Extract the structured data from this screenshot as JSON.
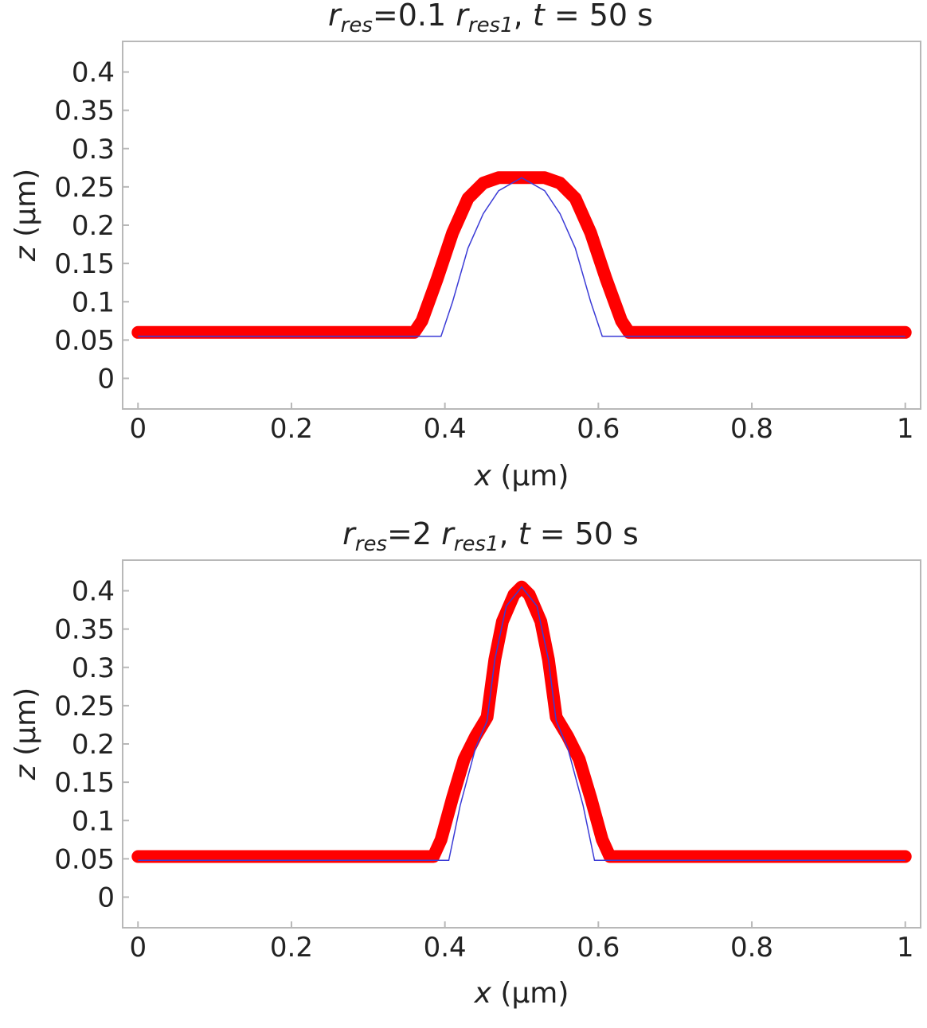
{
  "colors": {
    "band": "#ff0000",
    "centerline": "#3b3bd6",
    "frame": "#b8b8b8"
  },
  "chart_data": [
    {
      "type": "line",
      "title": {
        "r": "r",
        "res_sub": "res",
        "mid": "=0.1 ",
        "r2": "r",
        "res1_sub": "res1",
        "comma": ", ",
        "t": "t",
        "tail": " = 50 s"
      },
      "xlabel": {
        "var": "x",
        "unit": " (µm)"
      },
      "ylabel": {
        "var": "z",
        "unit": " (µm)"
      },
      "xlim": [
        -0.02,
        1.02
      ],
      "ylim": [
        -0.04,
        0.44
      ],
      "xticks": [
        0,
        0.2,
        0.4,
        0.6,
        0.8,
        1
      ],
      "xtick_labels": [
        "0",
        "0.2",
        "0.4",
        "0.6",
        "0.8",
        "1"
      ],
      "yticks": [
        0,
        0.05,
        0.1,
        0.15,
        0.2,
        0.25,
        0.3,
        0.35,
        0.4
      ],
      "ytick_labels": [
        "0",
        "0.05",
        "0.1",
        "0.15",
        "0.2",
        "0.25",
        "0.3",
        "0.35",
        "0.4"
      ],
      "grid": false,
      "series": [
        {
          "style": "thick-red-band",
          "x": [
            0,
            0.36,
            0.37,
            0.39,
            0.41,
            0.43,
            0.45,
            0.47,
            0.49,
            0.51,
            0.53,
            0.55,
            0.57,
            0.59,
            0.61,
            0.63,
            0.64,
            1
          ],
          "values": [
            0.06,
            0.06,
            0.075,
            0.13,
            0.19,
            0.235,
            0.255,
            0.262,
            0.262,
            0.262,
            0.262,
            0.255,
            0.235,
            0.19,
            0.13,
            0.075,
            0.06,
            0.06
          ]
        },
        {
          "style": "thin-blue-line",
          "x": [
            0,
            0.38,
            0.395,
            0.41,
            0.43,
            0.45,
            0.47,
            0.5,
            0.53,
            0.55,
            0.57,
            0.59,
            0.605,
            0.62,
            1
          ],
          "values": [
            0.055,
            0.055,
            0.055,
            0.1,
            0.17,
            0.215,
            0.245,
            0.262,
            0.245,
            0.215,
            0.17,
            0.1,
            0.055,
            0.055,
            0.055
          ]
        }
      ]
    },
    {
      "type": "line",
      "title": {
        "r": "r",
        "res_sub": "res",
        "mid": "=2 ",
        "r2": "r",
        "res1_sub": "res1",
        "comma": ", ",
        "t": "t",
        "tail": " = 50 s"
      },
      "xlabel": {
        "var": "x",
        "unit": " (µm)"
      },
      "ylabel": {
        "var": "z",
        "unit": " (µm)"
      },
      "xlim": [
        -0.02,
        1.02
      ],
      "ylim": [
        -0.04,
        0.44
      ],
      "xticks": [
        0,
        0.2,
        0.4,
        0.6,
        0.8,
        1
      ],
      "xtick_labels": [
        "0",
        "0.2",
        "0.4",
        "0.6",
        "0.8",
        "1"
      ],
      "yticks": [
        0,
        0.05,
        0.1,
        0.15,
        0.2,
        0.25,
        0.3,
        0.35,
        0.4
      ],
      "ytick_labels": [
        "0",
        "0.05",
        "0.1",
        "0.15",
        "0.2",
        "0.25",
        "0.3",
        "0.35",
        "0.4"
      ],
      "grid": false,
      "series": [
        {
          "style": "thick-red-band",
          "x": [
            0,
            0.385,
            0.395,
            0.41,
            0.425,
            0.44,
            0.455,
            0.465,
            0.475,
            0.49,
            0.5,
            0.51,
            0.525,
            0.535,
            0.545,
            0.56,
            0.575,
            0.59,
            0.605,
            0.615,
            1
          ],
          "values": [
            0.053,
            0.053,
            0.075,
            0.13,
            0.18,
            0.21,
            0.235,
            0.31,
            0.36,
            0.395,
            0.405,
            0.395,
            0.36,
            0.31,
            0.235,
            0.21,
            0.18,
            0.13,
            0.075,
            0.053,
            0.053
          ]
        },
        {
          "style": "thin-blue-line",
          "x": [
            0,
            0.39,
            0.405,
            0.42,
            0.44,
            0.455,
            0.465,
            0.48,
            0.5,
            0.52,
            0.535,
            0.545,
            0.56,
            0.58,
            0.595,
            0.61,
            1
          ],
          "values": [
            0.048,
            0.048,
            0.048,
            0.12,
            0.195,
            0.23,
            0.31,
            0.38,
            0.405,
            0.38,
            0.31,
            0.23,
            0.195,
            0.12,
            0.048,
            0.048,
            0.048
          ]
        }
      ]
    }
  ]
}
